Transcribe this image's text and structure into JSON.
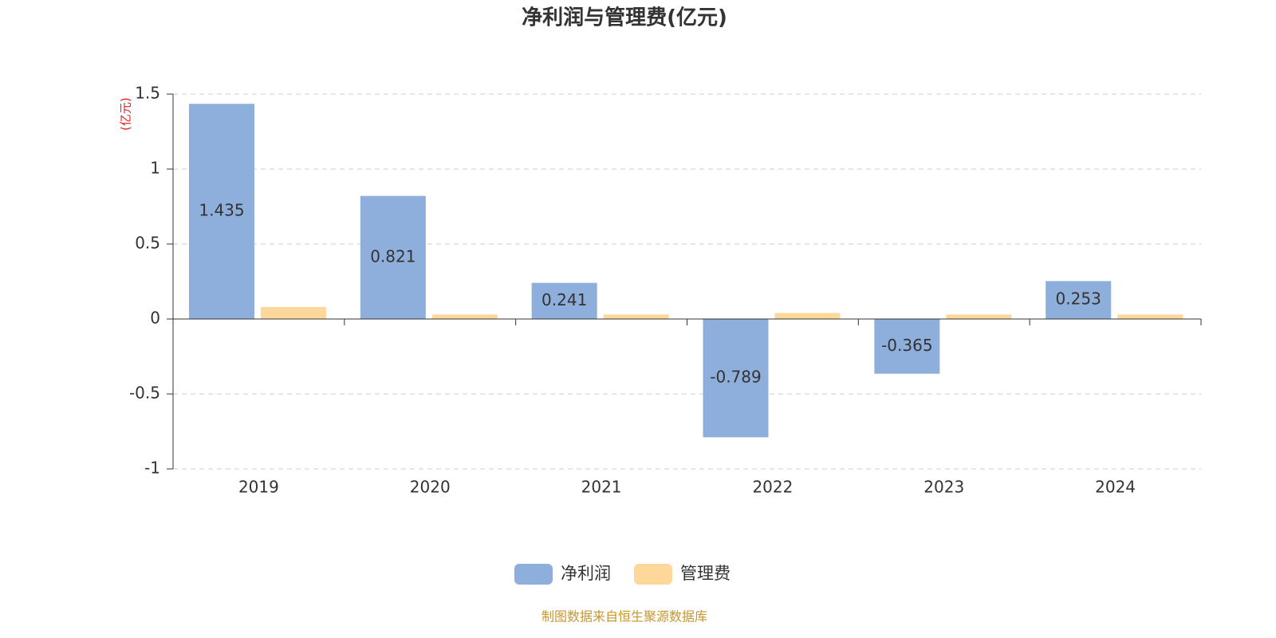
{
  "chart_data": {
    "type": "bar",
    "title": "净利润与管理费(亿元)",
    "y_axis_label": "(亿元)",
    "categories": [
      "2019",
      "2020",
      "2021",
      "2022",
      "2023",
      "2024"
    ],
    "series": [
      {
        "name": "净利润",
        "color": "#8eaedb",
        "values": [
          1.435,
          0.821,
          0.241,
          -0.789,
          -0.365,
          0.253
        ],
        "data_labels": true
      },
      {
        "name": "管理费",
        "color": "#fdd89a",
        "values": [
          0.08,
          0.03,
          0.03,
          0.04,
          0.03,
          0.03
        ],
        "data_labels": false
      }
    ],
    "ylim": [
      -1,
      1.5
    ],
    "yticks": [
      1.5,
      1,
      0.5,
      0,
      -0.5,
      -1
    ],
    "grid": true,
    "legend": "bottom",
    "source": "制图数据来自恒生聚源数据库"
  }
}
